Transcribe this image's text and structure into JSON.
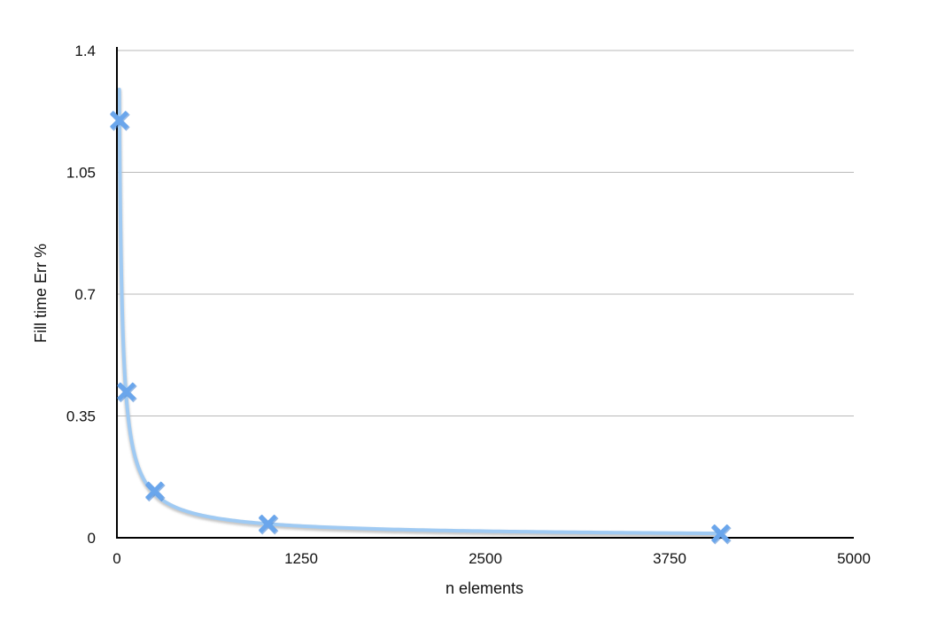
{
  "chart_data": {
    "type": "scatter",
    "title": "",
    "xlabel": "n elements",
    "ylabel": "Fill time Err %",
    "xlim": [
      0,
      5000
    ],
    "ylim": [
      0,
      1.4
    ],
    "xticks": [
      0,
      1250,
      2500,
      3750,
      5000
    ],
    "yticks": [
      0,
      0.35,
      0.7,
      1.05,
      1.4
    ],
    "xtick_labels": [
      "0",
      "1250",
      "2500",
      "3750",
      "5000"
    ],
    "ytick_labels": [
      "0",
      "0.35",
      "0.7",
      "1.05",
      "1.4"
    ],
    "grid": true,
    "legend": false,
    "trendline": "power",
    "colors": {
      "marker": "#6aa6ec",
      "trend": "#9fcaf3",
      "trend_shadow": "#b8b8b8"
    },
    "series": [
      {
        "x": [
          16,
          64,
          256,
          1024,
          4096
        ],
        "y": [
          1.2,
          0.42,
          0.135,
          0.04,
          0.012
        ]
      }
    ]
  }
}
